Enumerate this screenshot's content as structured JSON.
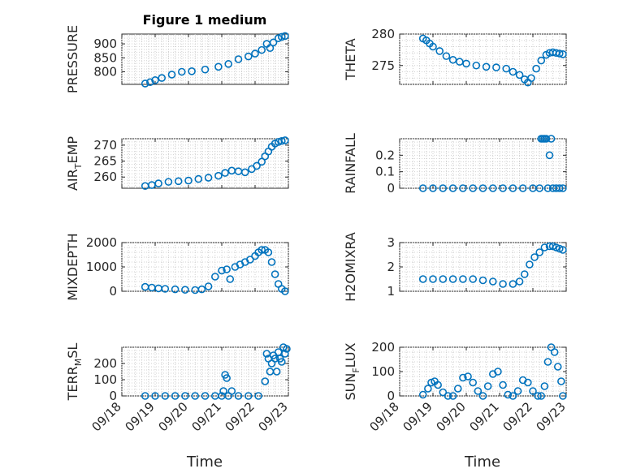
{
  "figure": {
    "title": "Figure 1 medium",
    "xlabel": "Time",
    "marker_color": "#0072BD"
  },
  "chart_data": [
    {
      "type": "scatter",
      "title": "Figure 1 medium",
      "ylabel": "PRESSURE",
      "xlabel": "",
      "x_tick_labels": [
        "09/18",
        "09/19",
        "09/20",
        "09/21",
        "09/22",
        "09/23"
      ],
      "ylim": [
        755,
        935
      ],
      "yticks": [
        800,
        850,
        900
      ],
      "grid": true,
      "series": [
        {
          "x": [
            0.7,
            0.85,
            1.0,
            1.2,
            1.5,
            1.8,
            2.1,
            2.5,
            2.9,
            3.2,
            3.5,
            3.8,
            4.0,
            4.2,
            4.35,
            4.45,
            4.55,
            4.7,
            4.8,
            4.9
          ],
          "y": [
            758,
            763,
            770,
            778,
            790,
            800,
            802,
            808,
            818,
            828,
            845,
            855,
            865,
            878,
            900,
            885,
            905,
            920,
            925,
            928
          ]
        }
      ]
    },
    {
      "type": "scatter",
      "title": "",
      "ylabel": "THETA",
      "xlabel": "",
      "x_tick_labels": [
        "09/18",
        "09/19",
        "09/20",
        "09/21",
        "09/22",
        "09/23"
      ],
      "ylim": [
        272,
        280
      ],
      "yticks": [
        275,
        280
      ],
      "grid": true,
      "series": [
        {
          "x": [
            0.7,
            0.8,
            0.9,
            1.0,
            1.2,
            1.4,
            1.6,
            1.8,
            2.0,
            2.3,
            2.6,
            2.9,
            3.2,
            3.4,
            3.6,
            3.75,
            3.85,
            3.95,
            4.1,
            4.25,
            4.4,
            4.5,
            4.6,
            4.7,
            4.8,
            4.9
          ],
          "y": [
            279.3,
            279.0,
            278.5,
            278.0,
            277.3,
            276.5,
            275.9,
            275.6,
            275.3,
            275.0,
            274.8,
            274.7,
            274.5,
            274.0,
            273.5,
            272.8,
            272.3,
            273.0,
            274.5,
            275.8,
            276.7,
            277.0,
            277.1,
            277.0,
            276.9,
            276.8
          ]
        }
      ]
    },
    {
      "type": "scatter",
      "title": "",
      "ylabel": "AIR_TEMP",
      "xlabel": "",
      "x_tick_labels": [
        "09/18",
        "09/19",
        "09/20",
        "09/21",
        "09/22",
        "09/23"
      ],
      "ylim": [
        256.5,
        272
      ],
      "yticks": [
        260,
        265,
        270
      ],
      "grid": true,
      "series": [
        {
          "x": [
            0.7,
            0.9,
            1.1,
            1.4,
            1.7,
            2.0,
            2.3,
            2.6,
            2.9,
            3.1,
            3.3,
            3.5,
            3.7,
            3.9,
            4.05,
            4.2,
            4.3,
            4.4,
            4.5,
            4.6,
            4.7,
            4.8,
            4.9
          ],
          "y": [
            257.2,
            257.5,
            258.0,
            258.5,
            258.7,
            258.9,
            259.4,
            259.8,
            260.4,
            261.3,
            262.0,
            261.8,
            261.5,
            262.5,
            263.5,
            264.8,
            266.5,
            268.0,
            269.5,
            270.5,
            271.0,
            271.3,
            271.5
          ]
        }
      ]
    },
    {
      "type": "scatter",
      "title": "",
      "ylabel": "RAINFALL",
      "xlabel": "",
      "x_tick_labels": [
        "09/18",
        "09/19",
        "09/20",
        "09/21",
        "09/22",
        "09/23"
      ],
      "ylim": [
        0,
        0.3
      ],
      "yticks": [
        0,
        0.1,
        0.2
      ],
      "grid": true,
      "series": [
        {
          "x": [
            0.7,
            1.0,
            1.3,
            1.6,
            1.9,
            2.2,
            2.5,
            2.8,
            3.1,
            3.4,
            3.7,
            4.0,
            4.2,
            4.25,
            4.3,
            4.35,
            4.4,
            4.45,
            4.5,
            4.55,
            4.6,
            4.7,
            4.8,
            4.9
          ],
          "y": [
            0,
            0,
            0,
            0,
            0,
            0,
            0,
            0,
            0,
            0,
            0,
            0,
            0,
            0.3,
            0.3,
            0.3,
            0.3,
            0,
            0.2,
            0.3,
            0,
            0,
            0,
            0
          ]
        }
      ]
    },
    {
      "type": "scatter",
      "title": "",
      "ylabel": "MIXDEPTH",
      "xlabel": "",
      "x_tick_labels": [
        "09/18",
        "09/19",
        "09/20",
        "09/21",
        "09/22",
        "09/23"
      ],
      "ylim": [
        0,
        2000
      ],
      "yticks": [
        0,
        1000,
        2000
      ],
      "grid": true,
      "series": [
        {
          "x": [
            0.7,
            0.9,
            1.1,
            1.3,
            1.6,
            1.9,
            2.2,
            2.4,
            2.6,
            2.8,
            3.0,
            3.15,
            3.25,
            3.4,
            3.55,
            3.7,
            3.85,
            4.0,
            4.1,
            4.2,
            4.3,
            4.4,
            4.5,
            4.6,
            4.7,
            4.8,
            4.9
          ],
          "y": [
            180,
            150,
            120,
            100,
            80,
            60,
            50,
            80,
            200,
            600,
            850,
            900,
            500,
            1000,
            1100,
            1200,
            1300,
            1450,
            1600,
            1700,
            1700,
            1600,
            1200,
            700,
            300,
            100,
            0
          ]
        }
      ]
    },
    {
      "type": "scatter",
      "title": "",
      "ylabel": "H2OMIXRA",
      "xlabel": "",
      "x_tick_labels": [
        "09/18",
        "09/19",
        "09/20",
        "09/21",
        "09/22",
        "09/23"
      ],
      "ylim": [
        1,
        3
      ],
      "yticks": [
        1,
        2,
        3
      ],
      "grid": true,
      "series": [
        {
          "x": [
            0.7,
            1.0,
            1.3,
            1.6,
            1.9,
            2.2,
            2.5,
            2.8,
            3.1,
            3.4,
            3.6,
            3.75,
            3.9,
            4.05,
            4.2,
            4.35,
            4.5,
            4.6,
            4.7,
            4.8,
            4.9
          ],
          "y": [
            1.5,
            1.5,
            1.5,
            1.5,
            1.5,
            1.5,
            1.45,
            1.4,
            1.3,
            1.3,
            1.4,
            1.7,
            2.1,
            2.4,
            2.6,
            2.8,
            2.85,
            2.85,
            2.8,
            2.75,
            2.7
          ]
        }
      ]
    },
    {
      "type": "scatter",
      "title": "",
      "ylabel": "TERR_MSL",
      "xlabel": "Time",
      "x_tick_labels": [
        "09/18",
        "09/19",
        "09/20",
        "09/21",
        "09/22",
        "09/23"
      ],
      "ylim": [
        0,
        300
      ],
      "yticks": [
        0,
        100,
        200
      ],
      "grid": true,
      "series": [
        {
          "x": [
            0.7,
            1.0,
            1.3,
            1.6,
            1.9,
            2.2,
            2.5,
            2.8,
            3.0,
            3.05,
            3.1,
            3.15,
            3.2,
            3.3,
            3.5,
            3.8,
            4.1,
            4.3,
            4.35,
            4.4,
            4.45,
            4.5,
            4.55,
            4.6,
            4.65,
            4.7,
            4.75,
            4.8,
            4.85,
            4.9,
            4.95
          ],
          "y": [
            0,
            0,
            0,
            0,
            0,
            0,
            0,
            0,
            0,
            30,
            130,
            110,
            0,
            30,
            0,
            0,
            0,
            90,
            260,
            230,
            150,
            200,
            250,
            230,
            150,
            270,
            230,
            210,
            300,
            260,
            290
          ]
        }
      ]
    },
    {
      "type": "scatter",
      "title": "",
      "ylabel": "SUN_FLUX",
      "xlabel": "Time",
      "x_tick_labels": [
        "09/18",
        "09/19",
        "09/20",
        "09/21",
        "09/22",
        "09/23"
      ],
      "ylim": [
        0,
        200
      ],
      "yticks": [
        0,
        100,
        200
      ],
      "grid": true,
      "series": [
        {
          "x": [
            0.7,
            0.85,
            0.95,
            1.05,
            1.15,
            1.3,
            1.45,
            1.6,
            1.75,
            1.9,
            2.05,
            2.2,
            2.35,
            2.5,
            2.65,
            2.8,
            2.95,
            3.1,
            3.25,
            3.4,
            3.55,
            3.7,
            3.85,
            4.0,
            4.15,
            4.25,
            4.35,
            4.45,
            4.55,
            4.65,
            4.75,
            4.85,
            4.9
          ],
          "y": [
            5,
            30,
            55,
            60,
            45,
            15,
            0,
            0,
            30,
            75,
            80,
            55,
            20,
            0,
            40,
            90,
            100,
            45,
            5,
            0,
            20,
            65,
            55,
            20,
            0,
            0,
            40,
            140,
            200,
            180,
            120,
            60,
            0
          ]
        }
      ]
    }
  ]
}
